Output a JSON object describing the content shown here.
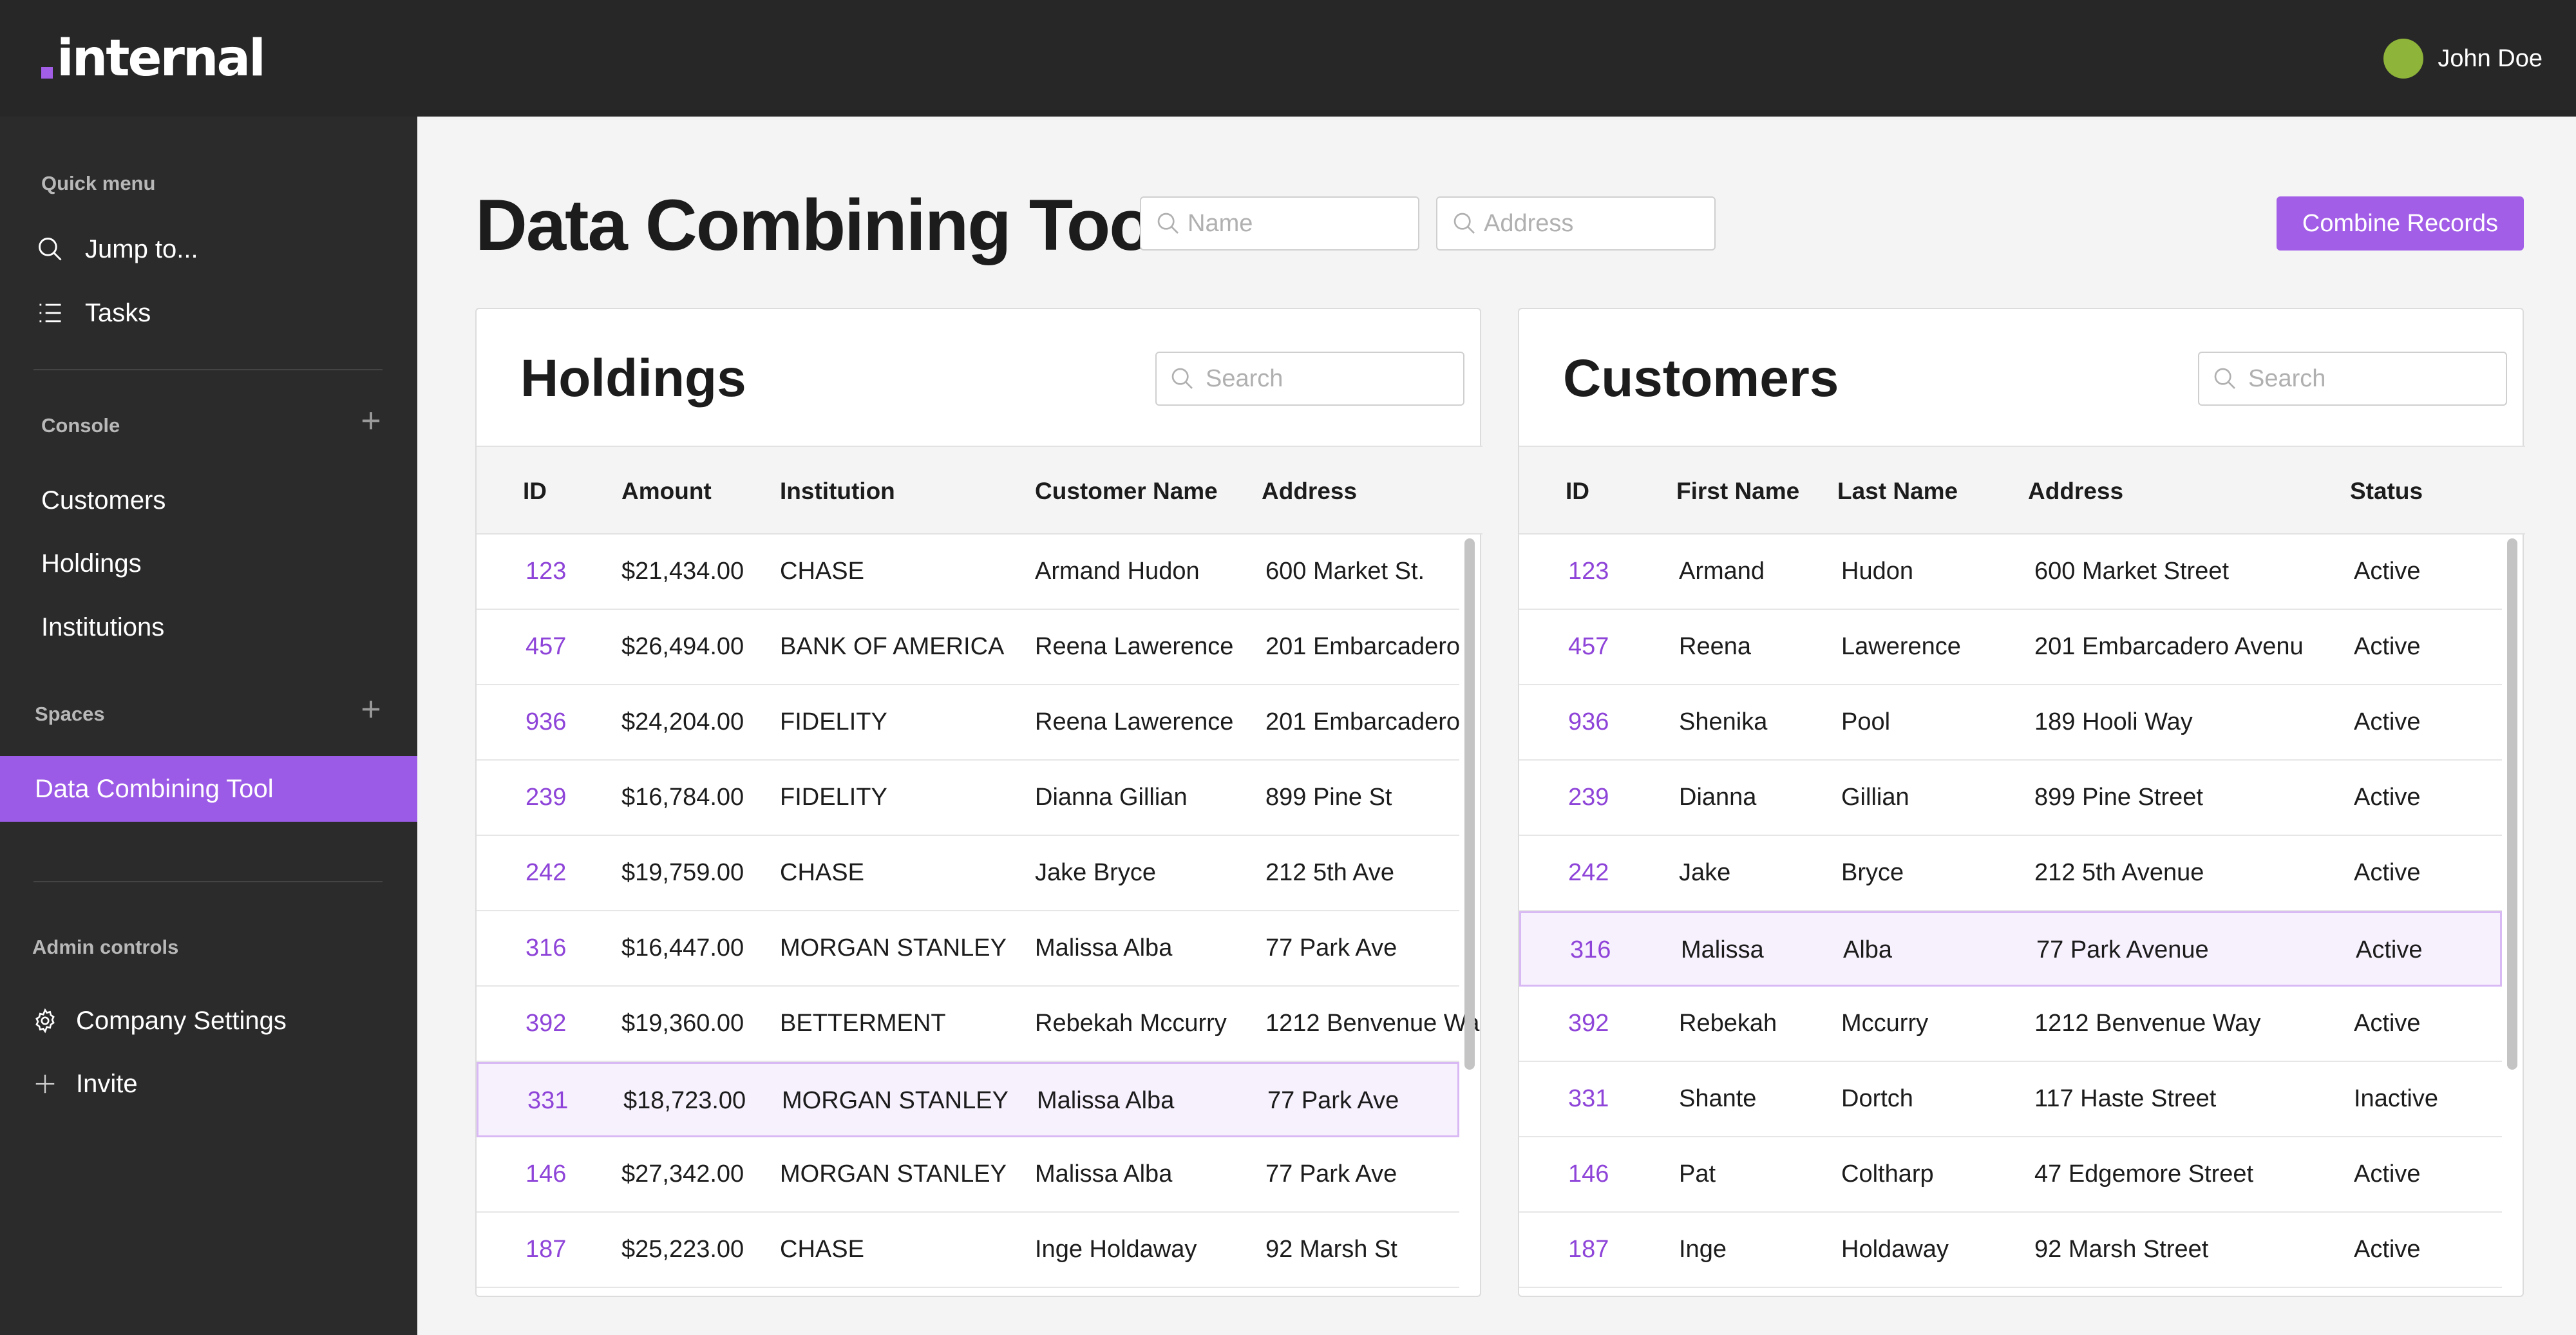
{
  "app": {
    "logo_text": "internal",
    "user_name": "John Doe"
  },
  "sidebar": {
    "quick_menu_label": "Quick menu",
    "quick_items": [
      {
        "label": "Jump to...",
        "icon": "search-icon"
      },
      {
        "label": "Tasks",
        "icon": "list-icon"
      }
    ],
    "console_label": "Console",
    "console_items": [
      {
        "label": "Customers"
      },
      {
        "label": "Holdings"
      },
      {
        "label": "Institutions"
      }
    ],
    "spaces_label": "Spaces",
    "spaces_items": [
      {
        "label": "Data Combining Tool",
        "active": true
      }
    ],
    "admin_label": "Admin controls",
    "admin_items": [
      {
        "label": "Company Settings",
        "icon": "gear-icon"
      },
      {
        "label": "Invite",
        "icon": "plus-icon"
      }
    ]
  },
  "main": {
    "title": "Data Combining Tool",
    "name_placeholder": "Name",
    "address_placeholder": "Address",
    "combine_button": "Combine Records"
  },
  "colors": {
    "accent": "#a35ee8",
    "topbar": "#272727",
    "sidebar": "#2b2b2b",
    "id_link": "#8e44d8",
    "avatar": "#8fb43a"
  },
  "holdings": {
    "title": "Holdings",
    "search_placeholder": "Search",
    "columns": [
      "ID",
      "Amount",
      "Institution",
      "Customer Name",
      "Address"
    ],
    "rows": [
      {
        "id": "123",
        "amount": "$21,434.00",
        "institution": "CHASE",
        "customer": "Armand Hudon",
        "address": "600 Market St."
      },
      {
        "id": "457",
        "amount": "$26,494.00",
        "institution": "BANK OF AMERICA",
        "customer": "Reena Lawerence",
        "address": "201 Embarcadero"
      },
      {
        "id": "936",
        "amount": "$24,204.00",
        "institution": "FIDELITY",
        "customer": "Reena Lawerence",
        "address": "201 Embarcadero"
      },
      {
        "id": "239",
        "amount": "$16,784.00",
        "institution": "FIDELITY",
        "customer": "Dianna Gillian",
        "address": "899 Pine St"
      },
      {
        "id": "242",
        "amount": "$19,759.00",
        "institution": "CHASE",
        "customer": "Jake Bryce",
        "address": "212 5th Ave"
      },
      {
        "id": "316",
        "amount": "$16,447.00",
        "institution": "MORGAN STANLEY",
        "customer": "Malissa Alba",
        "address": "77 Park Ave"
      },
      {
        "id": "392",
        "amount": "$19,360.00",
        "institution": "BETTERMENT",
        "customer": "Rebekah Mccurry",
        "address": "1212 Benvenue Wa"
      },
      {
        "id": "331",
        "amount": "$18,723.00",
        "institution": "MORGAN STANLEY",
        "customer": "Malissa Alba",
        "address": "77 Park Ave",
        "selected": true
      },
      {
        "id": "146",
        "amount": "$27,342.00",
        "institution": "MORGAN STANLEY",
        "customer": "Malissa Alba",
        "address": "77 Park Ave"
      },
      {
        "id": "187",
        "amount": "$25,223.00",
        "institution": "CHASE",
        "customer": "Inge Holdaway",
        "address": "92 Marsh St"
      }
    ]
  },
  "customers": {
    "title": "Customers",
    "search_placeholder": "Search",
    "columns": [
      "ID",
      "First Name",
      "Last Name",
      "Address",
      "Status"
    ],
    "rows": [
      {
        "id": "123",
        "first": "Armand",
        "last": "Hudon",
        "address": "600 Market Street",
        "status": "Active"
      },
      {
        "id": "457",
        "first": "Reena",
        "last": "Lawerence",
        "address": "201 Embarcadero Avenu",
        "status": "Active"
      },
      {
        "id": "936",
        "first": "Shenika",
        "last": "Pool",
        "address": "189 Hooli Way",
        "status": "Active"
      },
      {
        "id": "239",
        "first": "Dianna",
        "last": "Gillian",
        "address": "899 Pine Street",
        "status": "Active"
      },
      {
        "id": "242",
        "first": "Jake",
        "last": "Bryce",
        "address": "212 5th Avenue",
        "status": "Active"
      },
      {
        "id": "316",
        "first": "Malissa",
        "last": "Alba",
        "address": "77 Park Avenue",
        "status": "Active",
        "selected": true
      },
      {
        "id": "392",
        "first": "Rebekah",
        "last": "Mccurry",
        "address": "1212 Benvenue Way",
        "status": "Active"
      },
      {
        "id": "331",
        "first": "Shante",
        "last": "Dortch",
        "address": "117 Haste Street",
        "status": "Inactive"
      },
      {
        "id": "146",
        "first": "Pat",
        "last": "Coltharp",
        "address": "47 Edgemore Street",
        "status": "Active"
      },
      {
        "id": "187",
        "first": "Inge",
        "last": "Holdaway",
        "address": "92 Marsh Street",
        "status": "Active"
      }
    ]
  }
}
